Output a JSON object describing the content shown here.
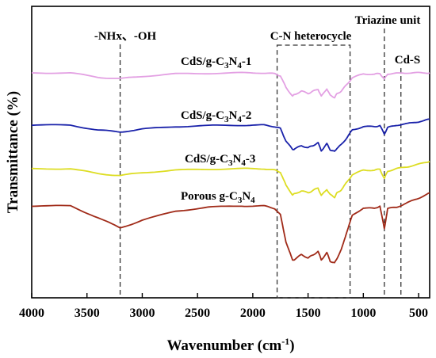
{
  "chart_data": {
    "type": "line",
    "title": "",
    "xlabel": "Wavenumber (cm⁻¹)",
    "ylabel": "Transmittance (%)",
    "xlim": [
      4000,
      400
    ],
    "x_reversed": true,
    "x_ticks": [
      4000,
      3500,
      3000,
      2500,
      2000,
      1500,
      1000,
      500
    ],
    "y_ticks_shown": false,
    "grid": false,
    "legend": "labels placed next to each curve",
    "annotations": [
      {
        "text": "-NHx、-OH",
        "type": "dashed-line",
        "x": 3200
      },
      {
        "text": "C-N heterocycle",
        "type": "dashed-box",
        "x_range": [
          1780,
          1120
        ]
      },
      {
        "text": "Triazine unit",
        "type": "dashed-line",
        "x": 810
      },
      {
        "text": "Cd-S",
        "type": "dashed-line",
        "x": 660
      }
    ],
    "series": [
      {
        "name": "CdS/g-C3N4-1",
        "color": "#e3a0e3",
        "x": [
          4000,
          3650,
          3400,
          3200,
          3000,
          2700,
          2400,
          2100,
          1900,
          1800,
          1750,
          1700,
          1640,
          1620,
          1560,
          1500,
          1460,
          1410,
          1380,
          1330,
          1300,
          1260,
          1240,
          1200,
          1150,
          1100,
          1000,
          900,
          850,
          810,
          780,
          700,
          600,
          500,
          400
        ],
        "y": [
          1.0,
          1.0,
          0.91,
          0.88,
          0.93,
          0.98,
          0.99,
          1.0,
          1.0,
          0.98,
          0.94,
          0.7,
          0.53,
          0.56,
          0.63,
          0.58,
          0.62,
          0.67,
          0.52,
          0.68,
          0.54,
          0.5,
          0.57,
          0.63,
          0.76,
          0.9,
          0.98,
          0.97,
          0.99,
          0.87,
          0.98,
          0.99,
          1.0,
          1.0,
          1.0
        ]
      },
      {
        "name": "CdS/g-C3N4-2",
        "color": "#1a22aa",
        "x": [
          4000,
          3650,
          3400,
          3200,
          3000,
          2700,
          2400,
          2100,
          1900,
          1800,
          1750,
          1700,
          1640,
          1620,
          1560,
          1500,
          1460,
          1410,
          1380,
          1330,
          1300,
          1260,
          1240,
          1200,
          1150,
          1100,
          1000,
          900,
          850,
          810,
          780,
          700,
          600,
          500,
          400
        ],
        "y": [
          1.0,
          1.0,
          0.9,
          0.86,
          0.92,
          0.97,
          0.99,
          1.0,
          1.0,
          0.97,
          0.93,
          0.68,
          0.5,
          0.52,
          0.58,
          0.54,
          0.58,
          0.64,
          0.48,
          0.62,
          0.5,
          0.46,
          0.53,
          0.6,
          0.74,
          0.9,
          0.97,
          0.97,
          0.99,
          0.82,
          0.95,
          1.0,
          1.03,
          1.07,
          1.12
        ]
      },
      {
        "name": "CdS/g-C3N4-3",
        "color": "#dddd22",
        "x": [
          4000,
          3650,
          3400,
          3200,
          3000,
          2700,
          2400,
          2100,
          1900,
          1800,
          1750,
          1700,
          1640,
          1620,
          1560,
          1500,
          1460,
          1410,
          1380,
          1330,
          1300,
          1260,
          1240,
          1200,
          1150,
          1100,
          1000,
          900,
          850,
          810,
          780,
          700,
          600,
          500,
          400
        ],
        "y": [
          1.0,
          1.0,
          0.9,
          0.86,
          0.92,
          0.97,
          0.99,
          1.0,
          1.0,
          0.97,
          0.93,
          0.66,
          0.47,
          0.49,
          0.55,
          0.51,
          0.55,
          0.61,
          0.45,
          0.58,
          0.47,
          0.42,
          0.5,
          0.57,
          0.72,
          0.88,
          0.97,
          0.97,
          0.99,
          0.8,
          0.95,
          1.0,
          1.04,
          1.09,
          1.15
        ]
      },
      {
        "name": "Porous g-C3N4",
        "color": "#a02a18",
        "x": [
          4000,
          3650,
          3400,
          3200,
          3000,
          2700,
          2400,
          2100,
          1900,
          1800,
          1750,
          1700,
          1640,
          1620,
          1560,
          1500,
          1460,
          1410,
          1380,
          1330,
          1300,
          1260,
          1240,
          1200,
          1150,
          1100,
          1000,
          900,
          850,
          810,
          780,
          700,
          600,
          500,
          400
        ],
        "y": [
          1.0,
          1.0,
          0.82,
          0.66,
          0.78,
          0.92,
          0.98,
          1.0,
          1.0,
          0.96,
          0.86,
          0.45,
          0.16,
          0.18,
          0.25,
          0.2,
          0.24,
          0.3,
          0.17,
          0.28,
          0.15,
          0.12,
          0.19,
          0.32,
          0.6,
          0.85,
          0.97,
          0.96,
          1.0,
          0.65,
          0.96,
          0.98,
          1.05,
          1.12,
          1.2
        ]
      }
    ]
  },
  "labels": {
    "nh_oh": "-NHx、-OH",
    "cn_heterocycle": "C-N heterocycle",
    "triazine": "Triazine unit",
    "cds": "Cd-S",
    "s1_prefix": "CdS/g-C",
    "s1_sub1": "3",
    "s1_mid": "N",
    "s1_sub2": "4",
    "s1_suffix": "-1",
    "s2_prefix": "CdS/g-C",
    "s2_sub1": "3",
    "s2_mid": "N",
    "s2_sub2": "4",
    "s2_suffix": "-2",
    "s3_prefix": "CdS/g-C",
    "s3_sub1": "3",
    "s3_mid": "N",
    "s3_sub2": "4",
    "s3_suffix": "-3",
    "s4_prefix": "Porous g-C",
    "s4_sub1": "3",
    "s4_mid": "N",
    "s4_sub2": "4",
    "s4_suffix": "",
    "ylabel": "Transmittance (%)",
    "xlabel_main": "Wavenumber (cm",
    "xlabel_sup": "-1",
    "xlabel_end": ")"
  }
}
